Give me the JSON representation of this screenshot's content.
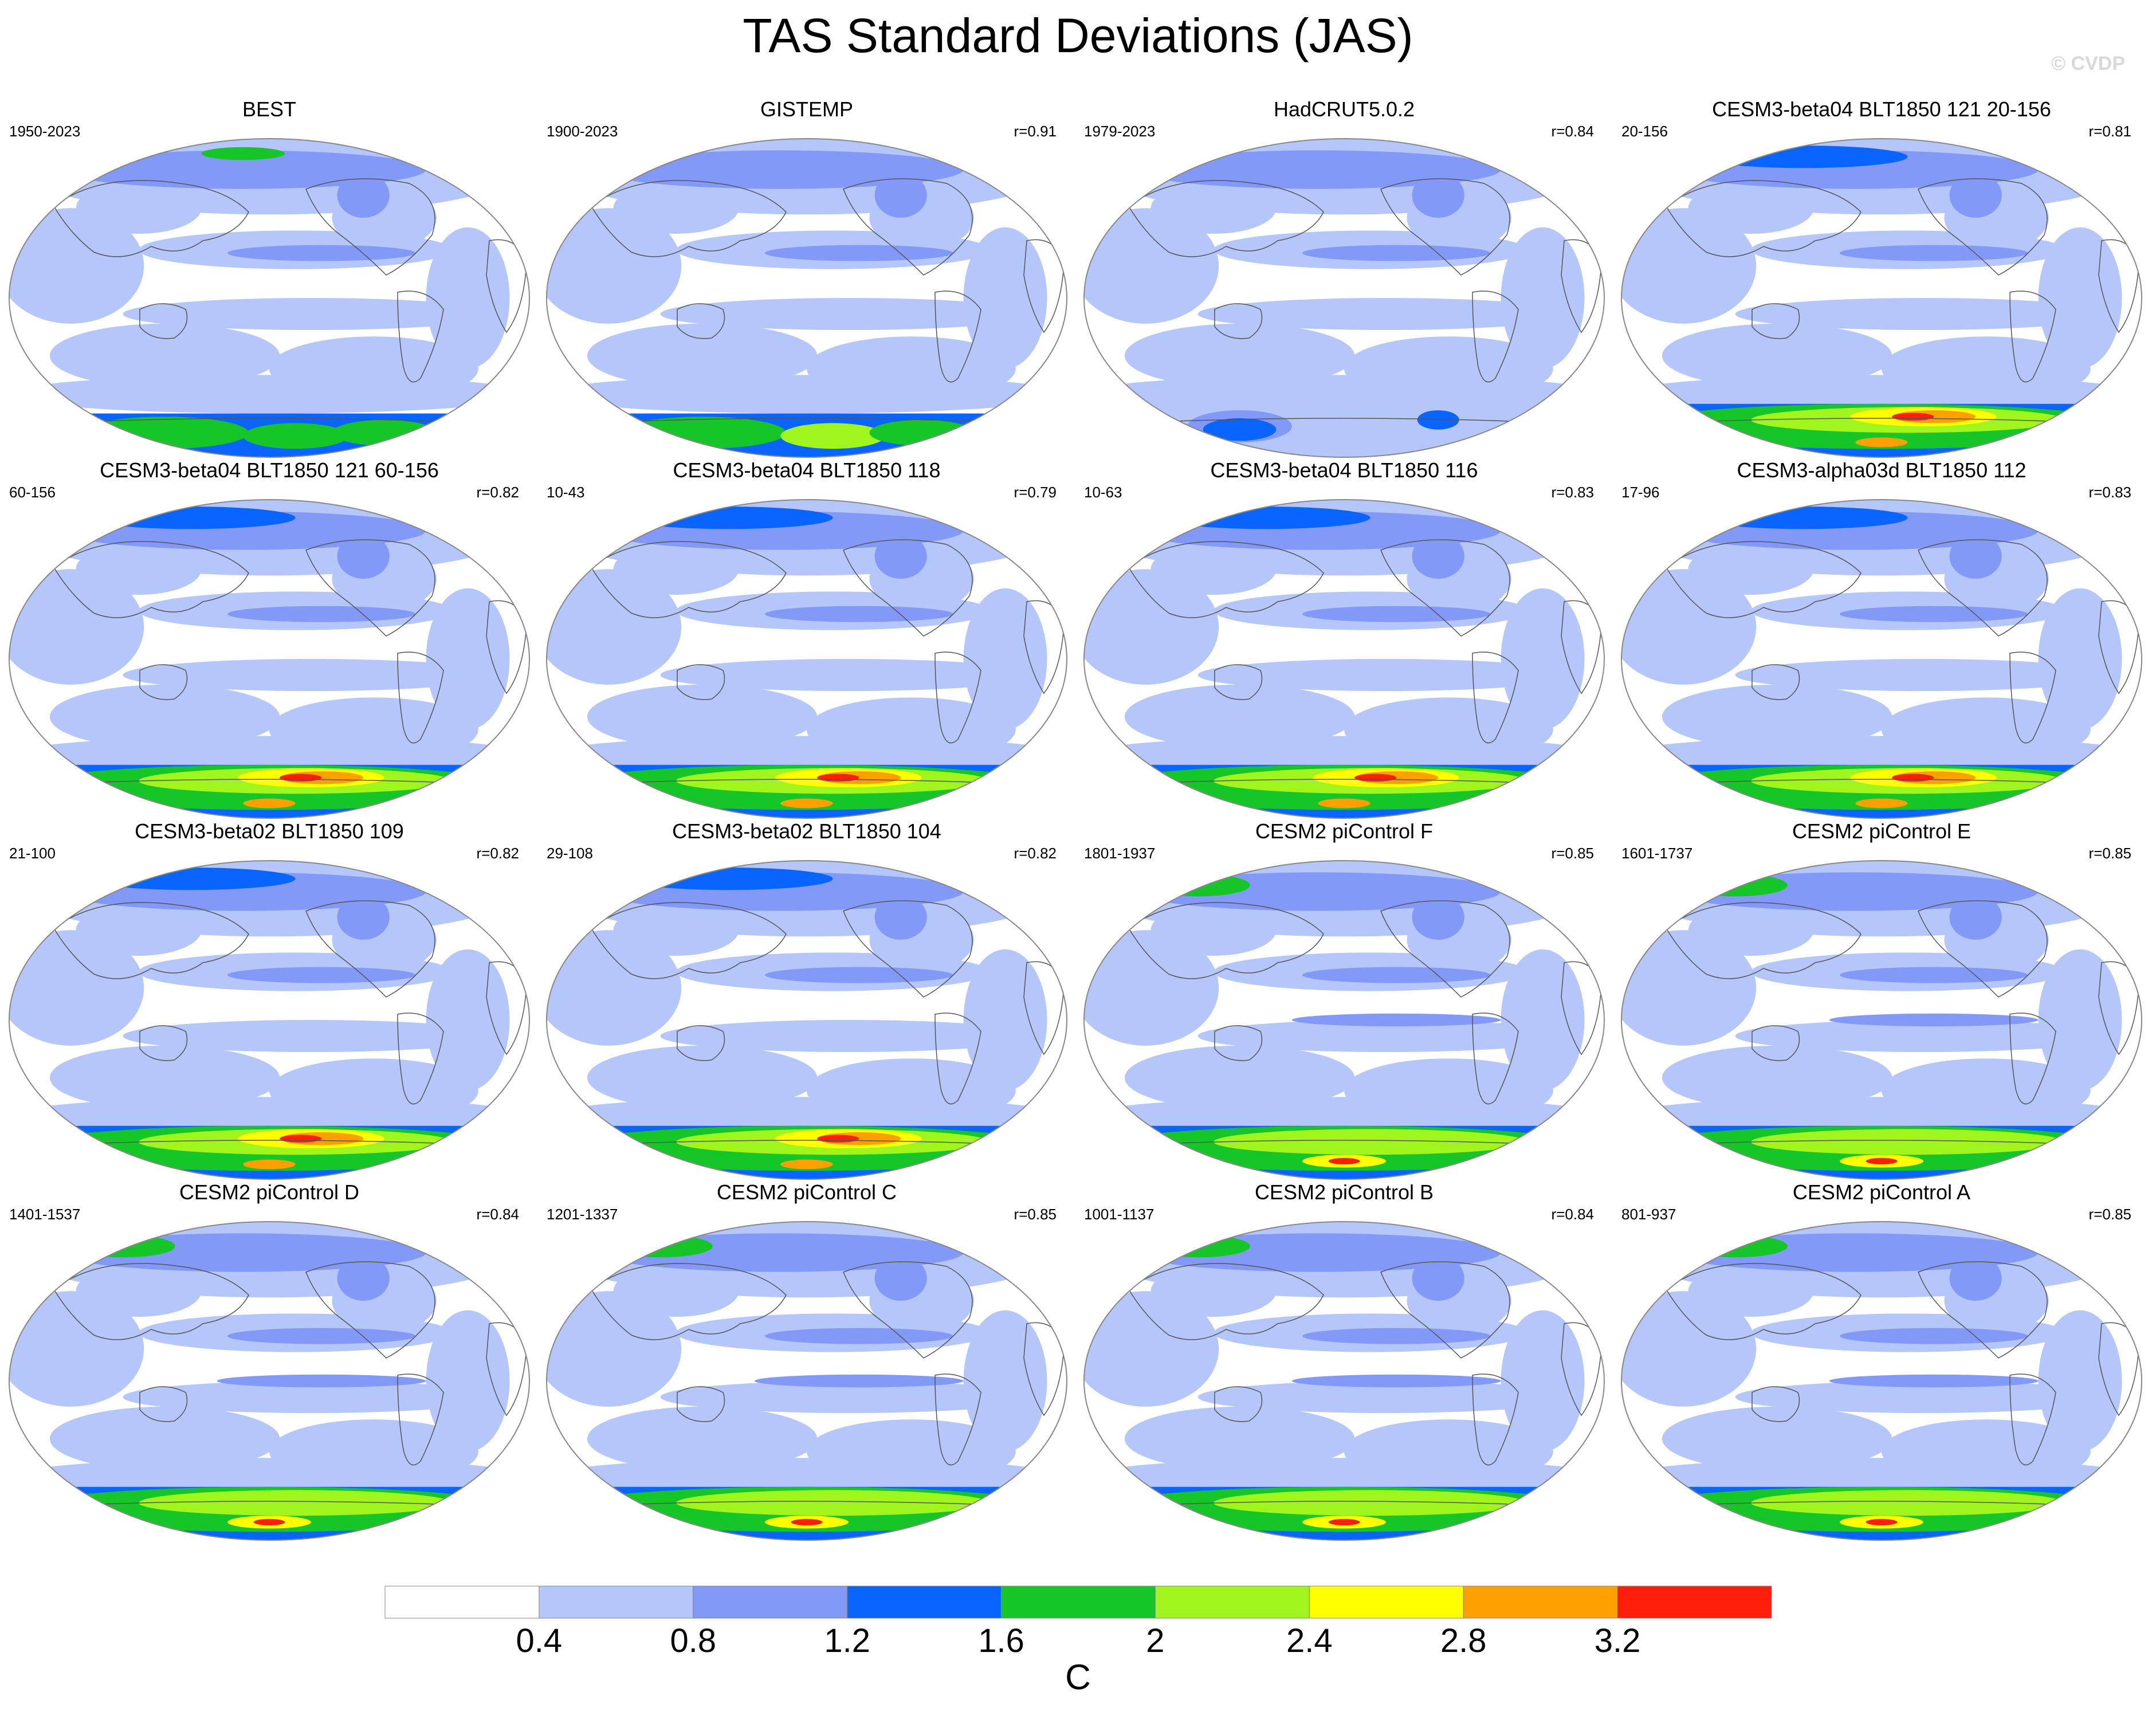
{
  "title": "TAS Standard Deviations (JAS)",
  "watermark": "© CVDP",
  "panels": [
    {
      "title": "BEST",
      "years": "1950-2023",
      "r": "",
      "variant": 0
    },
    {
      "title": "GISTEMP",
      "years": "1900-2023",
      "r": "r=0.91",
      "variant": 1
    },
    {
      "title": "HadCRUT5.0.2",
      "years": "1979-2023",
      "r": "r=0.84",
      "variant": 2
    },
    {
      "title": "CESM3-beta04 BLT1850 121 20-156",
      "years": "20-156",
      "r": "r=0.81",
      "variant": 3
    },
    {
      "title": "CESM3-beta04 BLT1850 121 60-156",
      "years": "60-156",
      "r": "r=0.82",
      "variant": 3
    },
    {
      "title": "CESM3-beta04 BLT1850 118",
      "years": "10-43",
      "r": "r=0.79",
      "variant": 3
    },
    {
      "title": "CESM3-beta04 BLT1850 116",
      "years": "10-63",
      "r": "r=0.83",
      "variant": 3
    },
    {
      "title": "CESM3-alpha03d BLT1850 112",
      "years": "17-96",
      "r": "r=0.83",
      "variant": 3
    },
    {
      "title": "CESM3-beta02 BLT1850 109",
      "years": "21-100",
      "r": "r=0.82",
      "variant": 3
    },
    {
      "title": "CESM3-beta02 BLT1850 104",
      "years": "29-108",
      "r": "r=0.82",
      "variant": 3
    },
    {
      "title": "CESM2 piControl F",
      "years": "1801-1937",
      "r": "r=0.85",
      "variant": 4
    },
    {
      "title": "CESM2 piControl E",
      "years": "1601-1737",
      "r": "r=0.85",
      "variant": 4
    },
    {
      "title": "CESM2 piControl D",
      "years": "1401-1537",
      "r": "r=0.84",
      "variant": 4
    },
    {
      "title": "CESM2 piControl C",
      "years": "1201-1337",
      "r": "r=0.85",
      "variant": 4
    },
    {
      "title": "CESM2 piControl B",
      "years": "1001-1137",
      "r": "r=0.84",
      "variant": 4
    },
    {
      "title": "CESM2 piControl A",
      "years": "801-937",
      "r": "r=0.85",
      "variant": 4
    }
  ],
  "colorbar": {
    "levels": [
      "0.4",
      "0.8",
      "1.2",
      "1.6",
      "2",
      "2.4",
      "2.8",
      "3.2"
    ],
    "colors": [
      "#ffffff",
      "#b4c6fa",
      "#8399f7",
      "#0a64ff",
      "#16c528",
      "#9ff51c",
      "#ffff00",
      "#ffa000",
      "#fe1e0a"
    ],
    "unit": "C"
  },
  "colors": {
    "coast": "#555555",
    "outline": "#888888"
  }
}
